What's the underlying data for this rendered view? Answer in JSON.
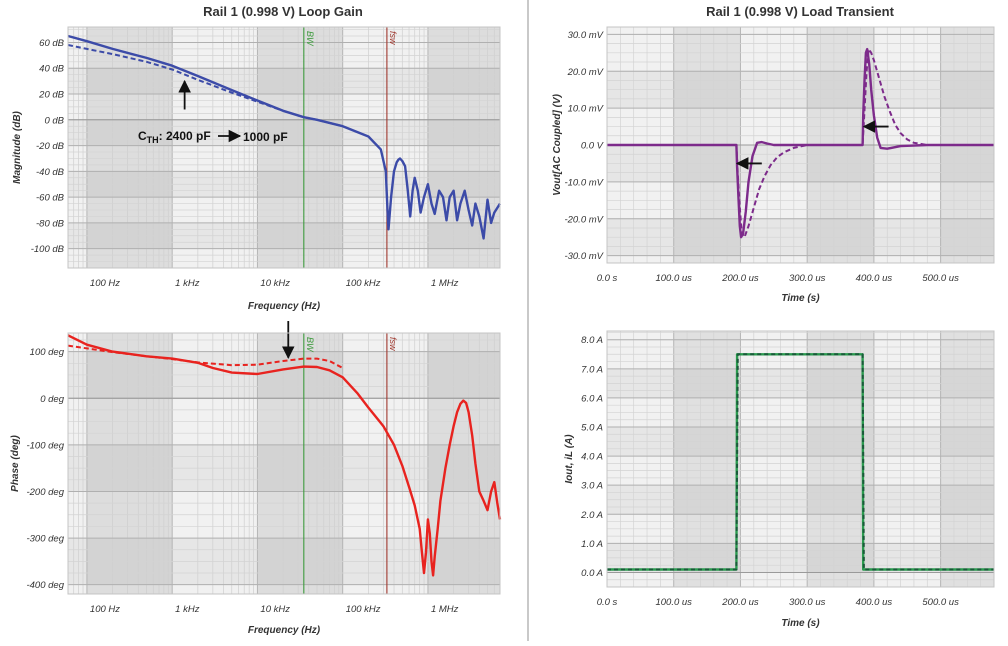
{
  "chart_data": [
    {
      "type": "line",
      "title": "Rail 1 (0.998 V) Loop Gain",
      "xlabel": "Frequency (Hz)",
      "ylabel": "Magnitude (dB)",
      "xscale": "log",
      "xlim": [
        60,
        7000000
      ],
      "ylim": [
        -115,
        72
      ],
      "grid": true,
      "legend": "none",
      "x_ticks": [
        {
          "v": 100,
          "label": "100 Hz"
        },
        {
          "v": 1000,
          "label": "1 kHz"
        },
        {
          "v": 10000,
          "label": "10 kHz"
        },
        {
          "v": 100000,
          "label": "100 kHz"
        },
        {
          "v": 1000000,
          "label": "1 MHz"
        }
      ],
      "y_ticks": [
        {
          "v": 60,
          "label": "60 dB"
        },
        {
          "v": 40,
          "label": "40 dB"
        },
        {
          "v": 20,
          "label": "20 dB"
        },
        {
          "v": 0,
          "label": "0 dB"
        },
        {
          "v": -20,
          "label": "-20 dB"
        },
        {
          "v": -40,
          "label": "-40 dB"
        },
        {
          "v": -60,
          "label": "-60 dB"
        },
        {
          "v": -80,
          "label": "-80 dB"
        },
        {
          "v": -100,
          "label": "-100 dB"
        }
      ],
      "markers": [
        {
          "label": "BW",
          "x": 35000,
          "color": "#3d9a3d"
        },
        {
          "label": "fsw",
          "x": 330000,
          "color": "#a0392f"
        }
      ],
      "annotation": {
        "text": "C",
        "sub": "TH",
        "rest": ": 2400 pF",
        "text2": "1000 pF",
        "arrow_x": 1400,
        "arrow_y1": 8,
        "arrow_y2": 30
      },
      "series": [
        {
          "color": "#3c4ba8",
          "dash": false,
          "x": [
            60,
            100,
            200,
            500,
            1000,
            2000,
            5000,
            10000,
            20000,
            35000,
            50000,
            100000,
            200000,
            280000,
            320000,
            335000,
            345000,
            370000,
            400000,
            430000,
            450000,
            470000,
            500000,
            540000,
            580000,
            620000,
            660000,
            700000,
            760000,
            820000,
            900000,
            1000000,
            1100000,
            1200000,
            1350000,
            1500000,
            1650000,
            1800000,
            2000000,
            2200000,
            2400000,
            2700000,
            3000000,
            3300000,
            3600000,
            4000000,
            4500000,
            5000000,
            5500000,
            6000000,
            7000000
          ],
          "y": [
            65,
            61,
            55,
            48,
            42,
            34,
            23,
            15,
            7,
            2,
            0,
            -5,
            -13,
            -23,
            -40,
            -70,
            -85,
            -60,
            -40,
            -33,
            -31,
            -30,
            -32,
            -36,
            -55,
            -75,
            -55,
            -45,
            -55,
            -72,
            -60,
            -50,
            -65,
            -73,
            -55,
            -60,
            -78,
            -60,
            -55,
            -78,
            -65,
            -55,
            -70,
            -82,
            -65,
            -75,
            -92,
            -62,
            -80,
            -72,
            -65
          ]
        },
        {
          "color": "#3c4ba8",
          "dash": true,
          "x": [
            60,
            100,
            200,
            500,
            1000,
            2000,
            5000,
            10000,
            20000,
            35000,
            50000,
            100000
          ],
          "y": [
            58,
            55,
            51,
            45,
            39,
            31,
            21,
            14,
            7,
            2,
            0,
            -5
          ]
        }
      ]
    },
    {
      "type": "line",
      "title": "",
      "xlabel": "Frequency (Hz)",
      "ylabel": "Phase (deg)",
      "xscale": "log",
      "xlim": [
        60,
        7000000
      ],
      "ylim": [
        -420,
        140
      ],
      "grid": true,
      "legend": "none",
      "x_ticks": [
        {
          "v": 100,
          "label": "100 Hz"
        },
        {
          "v": 1000,
          "label": "1 kHz"
        },
        {
          "v": 10000,
          "label": "10 kHz"
        },
        {
          "v": 100000,
          "label": "100 kHz"
        },
        {
          "v": 1000000,
          "label": "1 MHz"
        }
      ],
      "y_ticks": [
        {
          "v": 100,
          "label": "100 deg"
        },
        {
          "v": 0,
          "label": "0 deg"
        },
        {
          "v": -100,
          "label": "-100 deg"
        },
        {
          "v": -200,
          "label": "-200 deg"
        },
        {
          "v": -300,
          "label": "-300 deg"
        },
        {
          "v": -400,
          "label": "-400 deg"
        }
      ],
      "markers": [
        {
          "label": "BW",
          "x": 35000,
          "color": "#3d9a3d"
        },
        {
          "label": "fsw",
          "x": 330000,
          "color": "#a0392f"
        }
      ],
      "arrow": {
        "x": 23000,
        "y1": 170,
        "y2": 87
      },
      "series": [
        {
          "color": "#e8231f",
          "dash": false,
          "x": [
            60,
            100,
            200,
            500,
            1000,
            2000,
            3000,
            5000,
            10000,
            20000,
            35000,
            50000,
            70000,
            100000,
            150000,
            200000,
            300000,
            400000,
            500000,
            600000,
            700000,
            800000,
            850000,
            900000,
            950000,
            1000000,
            1050000,
            1100000,
            1150000,
            1200000,
            1300000,
            1400000,
            1600000,
            1800000,
            2000000,
            2200000,
            2400000,
            2600000,
            2800000,
            3000000,
            3300000,
            3600000,
            4000000,
            4500000,
            5000000,
            5500000,
            6000000,
            6500000,
            7000000
          ],
          "y": [
            135,
            115,
            100,
            90,
            85,
            76,
            65,
            55,
            52,
            62,
            68,
            67,
            60,
            45,
            10,
            -20,
            -60,
            -100,
            -145,
            -190,
            -230,
            -280,
            -330,
            -375,
            -330,
            -260,
            -290,
            -350,
            -380,
            -340,
            -280,
            -220,
            -150,
            -100,
            -60,
            -30,
            -12,
            -5,
            -10,
            -30,
            -80,
            -140,
            -200,
            -220,
            -240,
            -200,
            -180,
            -225,
            -260
          ]
        },
        {
          "color": "#e8231f",
          "dash": true,
          "x": [
            60,
            100,
            200,
            500,
            1000,
            2000,
            5000,
            10000,
            20000,
            35000,
            50000,
            70000,
            100000
          ],
          "y": [
            113,
            107,
            99,
            90,
            84,
            77,
            71,
            72,
            80,
            85,
            85,
            80,
            65
          ]
        }
      ]
    },
    {
      "type": "line",
      "title": "Rail 1 (0.998 V) Load Transient",
      "xlabel": "Time (s)",
      "ylabel": "Vout[AC Coupled] (V)",
      "xscale": "linear",
      "xlim": [
        0,
        580
      ],
      "ylim": [
        -32,
        32
      ],
      "grid": true,
      "legend": "none",
      "x_ticks": [
        {
          "v": 0,
          "label": "0.0 s"
        },
        {
          "v": 100,
          "label": "100.0 us"
        },
        {
          "v": 200,
          "label": "200.0 us"
        },
        {
          "v": 300,
          "label": "300.0 us"
        },
        {
          "v": 400,
          "label": "400.0 us"
        },
        {
          "v": 500,
          "label": "500.0 us"
        }
      ],
      "y_ticks": [
        {
          "v": 30,
          "label": "30.0 mV"
        },
        {
          "v": 20,
          "label": "20.0 mV"
        },
        {
          "v": 10,
          "label": "10.0 mV"
        },
        {
          "v": 0,
          "label": "0.0 V"
        },
        {
          "v": -10,
          "label": "-10.0 mV"
        },
        {
          "v": -20,
          "label": "-20.0 mV"
        },
        {
          "v": -30,
          "label": "-30.0 mV"
        }
      ],
      "arrows": [
        {
          "x1": 220,
          "x2": 195,
          "y": -5
        },
        {
          "x1": 410,
          "x2": 385,
          "y": 5
        }
      ],
      "series": [
        {
          "color": "#7d2b8b",
          "dash": false,
          "x": [
            0,
            194,
            195,
            197,
            199,
            201,
            204,
            208,
            212,
            218,
            225,
            232,
            240,
            250,
            270,
            300,
            320,
            340,
            360,
            383,
            384,
            386,
            388,
            390,
            393,
            396,
            400,
            405,
            410,
            420,
            440,
            480,
            580
          ],
          "y": [
            0,
            0,
            -6,
            -14,
            -22,
            -25,
            -24,
            -18,
            -10,
            -3,
            0.6,
            0.8,
            0.4,
            0,
            0,
            0,
            0,
            0,
            0,
            0,
            8,
            18,
            25,
            26,
            22,
            15,
            8,
            2,
            -0.8,
            -1,
            -0.3,
            0,
            0
          ]
        },
        {
          "color": "#7d2b8b",
          "dash": true,
          "x": [
            0,
            194,
            196,
            199,
            202,
            206,
            212,
            220,
            228,
            236,
            245,
            255,
            265,
            280,
            300,
            383,
            386,
            389,
            392,
            396,
            400,
            408,
            416,
            424,
            432,
            440,
            450,
            460,
            480,
            580
          ],
          "y": [
            0,
            0,
            -8,
            -17,
            -24,
            -25,
            -22,
            -17,
            -12,
            -8.5,
            -5.5,
            -3.3,
            -2,
            -0.8,
            0,
            0,
            10,
            20,
            26,
            25,
            23,
            18,
            13,
            9,
            5.5,
            3.2,
            1.5,
            0.6,
            0,
            0
          ]
        }
      ]
    },
    {
      "type": "line",
      "title": "",
      "xlabel": "Time (s)",
      "ylabel": "Iout, iL (A)",
      "xscale": "linear",
      "xlim": [
        0,
        580
      ],
      "ylim": [
        -0.5,
        8.3
      ],
      "grid": true,
      "legend": "none",
      "x_ticks": [
        {
          "v": 0,
          "label": "0.0 s"
        },
        {
          "v": 100,
          "label": "100.0 us"
        },
        {
          "v": 200,
          "label": "200.0 us"
        },
        {
          "v": 300,
          "label": "300.0 us"
        },
        {
          "v": 400,
          "label": "400.0 us"
        },
        {
          "v": 500,
          "label": "500.0 us"
        }
      ],
      "y_ticks": [
        {
          "v": 8,
          "label": "8.0 A"
        },
        {
          "v": 7,
          "label": "7.0 A"
        },
        {
          "v": 6,
          "label": "6.0 A"
        },
        {
          "v": 5,
          "label": "5.0 A"
        },
        {
          "v": 4,
          "label": "4.0 A"
        },
        {
          "v": 3,
          "label": "3.0 A"
        },
        {
          "v": 2,
          "label": "2.0 A"
        },
        {
          "v": 1,
          "label": "1.0 A"
        },
        {
          "v": 0,
          "label": "0.0 A"
        }
      ],
      "series": [
        {
          "color": "#2a9a4e",
          "dash": false,
          "x": [
            0,
            194,
            195,
            383,
            384,
            580
          ],
          "y": [
            0.1,
            0.1,
            7.5,
            7.5,
            0.1,
            0.1
          ]
        },
        {
          "color": "#1a5a3a",
          "dash": true,
          "x": [
            0,
            194,
            196,
            383,
            385,
            580
          ],
          "y": [
            0.1,
            0.1,
            7.5,
            7.5,
            0.1,
            0.1
          ]
        }
      ]
    }
  ]
}
